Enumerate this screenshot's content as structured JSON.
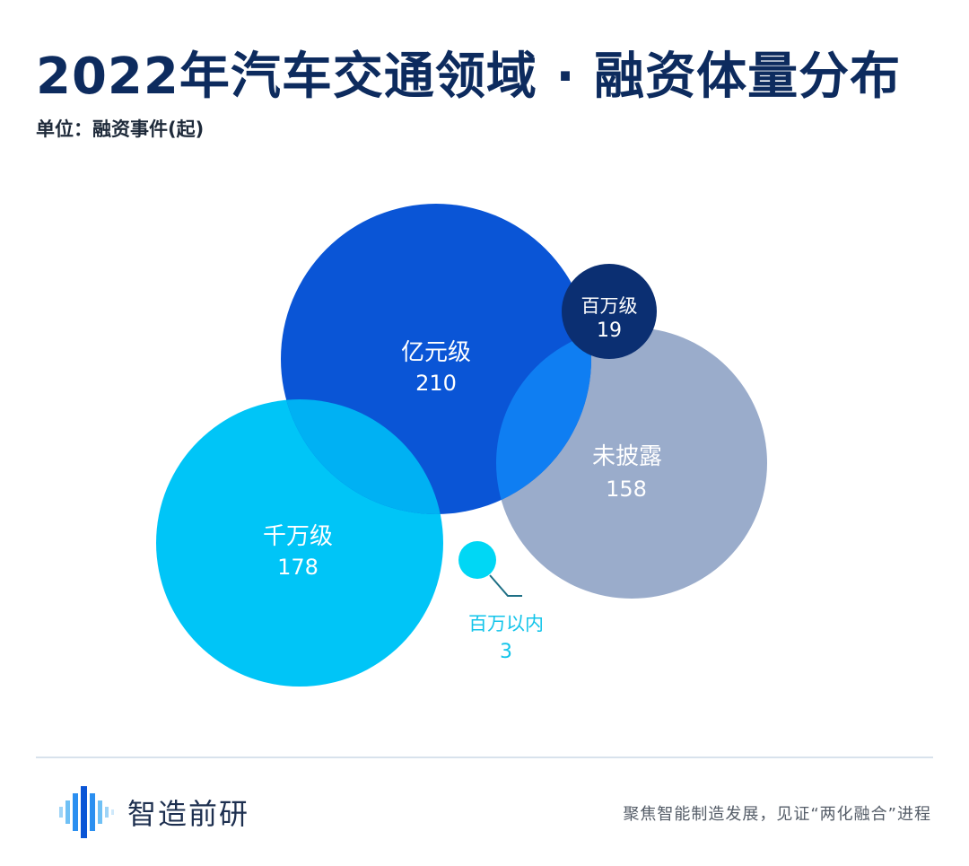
{
  "header": {
    "title": "2022年汽车交通领域 · 融资体量分布",
    "unit": "单位：融资事件(起)"
  },
  "chart_data": {
    "type": "bubble",
    "title": "2022年汽车交通领域 · 融资体量分布",
    "unit_label": "单位：融资事件(起)",
    "series": [
      {
        "label": "亿元级",
        "value": 210,
        "color": "#0a55d6"
      },
      {
        "label": "千万级",
        "value": 178,
        "color": "#00c5f7"
      },
      {
        "label": "未披露",
        "value": 158,
        "color": "#9aaccb"
      },
      {
        "label": "百万级",
        "value": 19,
        "color": "#0b2f72"
      },
      {
        "label": "百万以内",
        "value": 3,
        "color": "#00d7f5"
      }
    ],
    "overlap_colors": {
      "亿元级_千万级": "#00b1f3",
      "亿元级_未披露": "#0f7ef2"
    }
  },
  "footer": {
    "brand": "智造前研",
    "slogan": "聚焦智能制造发展，见证“两化融合”进程"
  }
}
